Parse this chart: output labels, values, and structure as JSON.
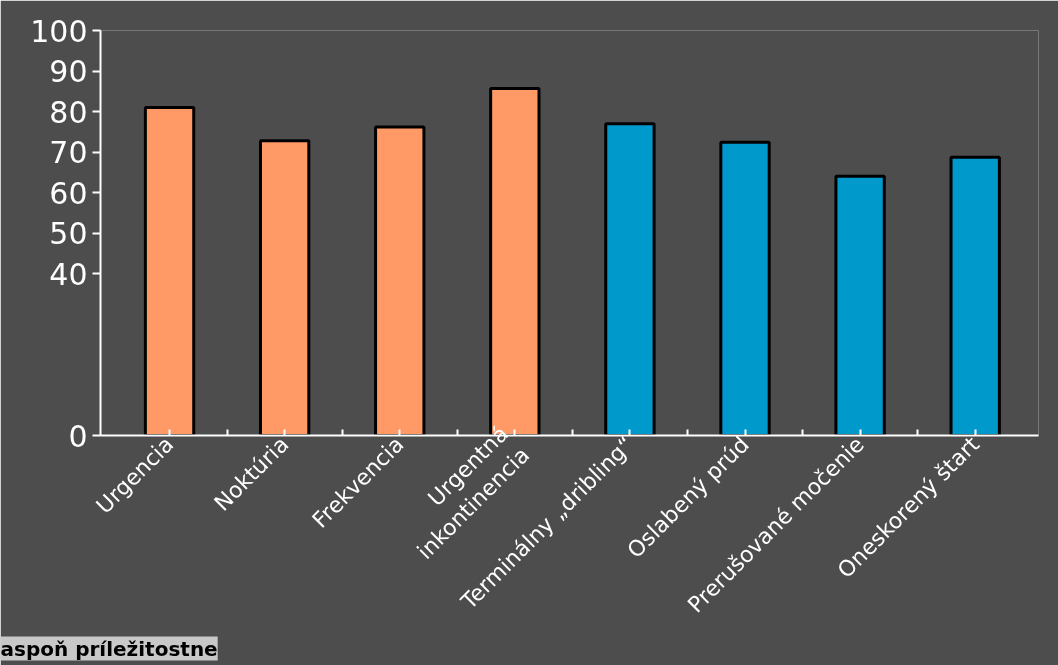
{
  "chart_data": {
    "type": "bar",
    "categories": [
      "Urgencia",
      "Noktúria",
      "Frekvencia",
      "Urgentná\ninkontinencia",
      "Terminálny „dribling“",
      "Oslabený prúd",
      "Prerušované močenie",
      "Oneskorený štart"
    ],
    "values": [
      81,
      72.8,
      76.2,
      85.7,
      77,
      72.4,
      64,
      68.7
    ],
    "colors": [
      "#ff9966",
      "#ff9966",
      "#ff9966",
      "#ff9966",
      "#0099cc",
      "#0099cc",
      "#0099cc",
      "#0099cc"
    ],
    "ylim": [
      0,
      100
    ],
    "yticks": [
      0,
      40,
      50,
      60,
      70,
      80,
      90,
      100
    ],
    "grid": false,
    "annotations": [
      "aspoň príležitostne"
    ]
  }
}
